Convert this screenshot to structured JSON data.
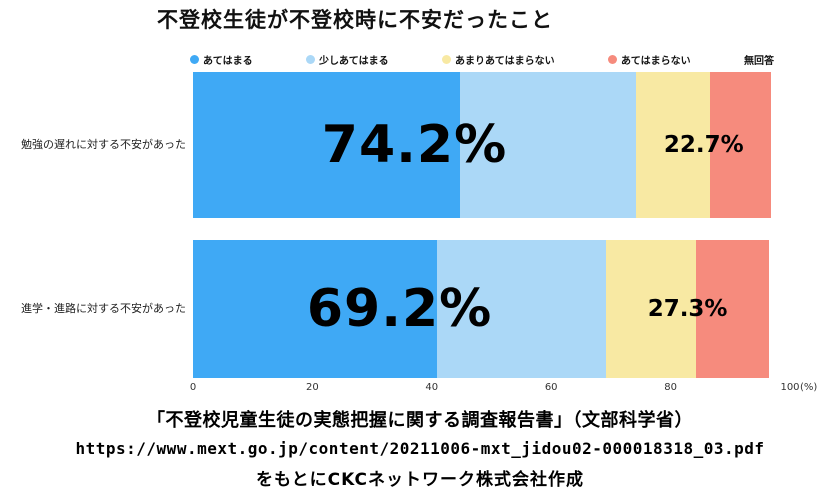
{
  "title": "不登校生徒が不登校時に不安だったこと",
  "legend": [
    {
      "key": "agree",
      "label": "あてはまる",
      "color": "#3fa9f5"
    },
    {
      "key": "somewhat-agree",
      "label": "少しあてはまる",
      "color": "#abd8f7"
    },
    {
      "key": "somewhat-disagree",
      "label": "あまりあてはまらない",
      "color": "#f8e9a3"
    },
    {
      "key": "disagree",
      "label": "あてはまらない",
      "color": "#f68b7d"
    },
    {
      "key": "no-answer",
      "label": "無回答",
      "color": ""
    }
  ],
  "chart_data": {
    "type": "bar",
    "orientation": "horizontal",
    "stacked": true,
    "title": "不登校生徒が不登校時に不安だったこと",
    "categories": [
      "勉強の遅れに対する不安があった",
      "進学・進路に対する不安があった"
    ],
    "series": [
      {
        "key": "agree",
        "name": "あてはまる",
        "color": "#3fa9f5",
        "values": [
          44.7,
          40.9
        ]
      },
      {
        "key": "somewhat-agree",
        "name": "少しあてはまる",
        "color": "#abd8f7",
        "values": [
          29.5,
          28.3
        ]
      },
      {
        "key": "somewhat-disagree",
        "name": "あまりあてはまらない",
        "color": "#f8e9a3",
        "values": [
          12.4,
          15.1
        ]
      },
      {
        "key": "disagree",
        "name": "あてはまらない",
        "color": "#f68b7d",
        "values": [
          10.3,
          12.2
        ]
      },
      {
        "key": "no-answer",
        "name": "無回答",
        "color": "#ffffff",
        "values": [
          3.1,
          3.5
        ]
      }
    ],
    "combined_labels": {
      "agree_combined": [
        "74.2%",
        "69.2%"
      ],
      "disagree_combined": [
        "22.7%",
        "27.3%"
      ]
    },
    "x_ticks": [
      0,
      20,
      40,
      60,
      80,
      100
    ],
    "x_unit": "(%)",
    "xlim": [
      0,
      100
    ],
    "grid": false,
    "legend_position": "top"
  },
  "footer": {
    "line1": "「不登校児童生徒の実態把握に関する調査報告書」（文部科学省）",
    "line2": "https://www.mext.go.jp/content/20211006-mxt_jidou02-000018318_03.pdf",
    "line3": "をもとにCKCネットワーク株式会社作成"
  }
}
